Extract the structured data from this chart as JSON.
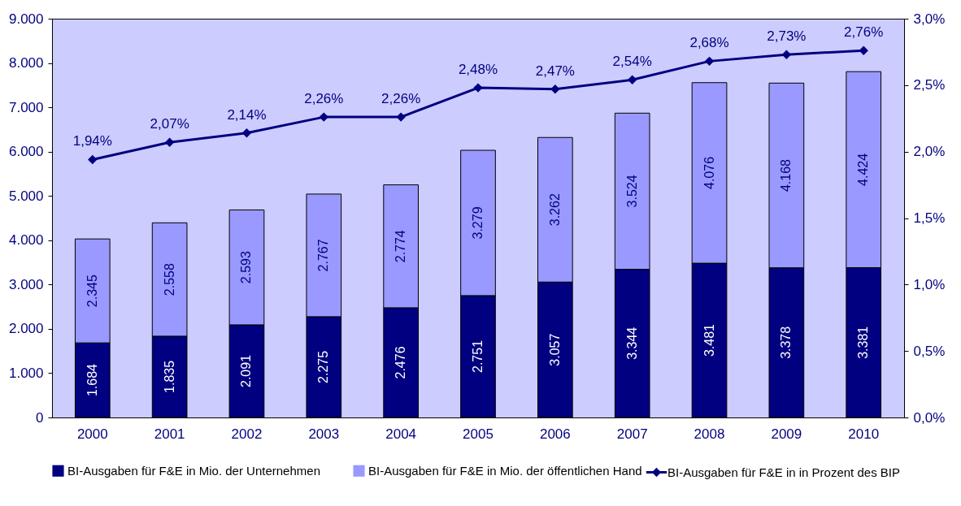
{
  "chart_data": {
    "type": "bar",
    "stacked": true,
    "categories": [
      "2000",
      "2001",
      "2002",
      "2003",
      "2004",
      "2005",
      "2006",
      "2007",
      "2008",
      "2009",
      "2010"
    ],
    "series": [
      {
        "name": "BI-Ausgaben für F&E in Mio. der Unternehmen",
        "color": "#000080",
        "values": [
          1684,
          1835,
          2091,
          2275,
          2476,
          2751,
          3057,
          3344,
          3481,
          3378,
          3381
        ],
        "value_labels": [
          "1.684",
          "1.835",
          "2.091",
          "2.275",
          "2.476",
          "2.751",
          "3.057",
          "3.344",
          "3.481",
          "3.378",
          "3.381"
        ]
      },
      {
        "name": "BI-Ausgaben für F&E in Mio. der öffentlichen Hand",
        "color": "#9999ff",
        "values": [
          2345,
          2558,
          2593,
          2767,
          2774,
          3279,
          3262,
          3524,
          4076,
          4168,
          4424
        ],
        "value_labels": [
          "2.345",
          "2.558",
          "2.593",
          "2.767",
          "2.774",
          "3.279",
          "3.262",
          "3.524",
          "4.076",
          "4.168",
          "4.424"
        ]
      },
      {
        "name": "BI-Ausgaben für F&E in in Prozent des BIP",
        "type": "line",
        "axis": "y2",
        "color": "#000080",
        "marker": "diamond",
        "values": [
          1.94,
          2.07,
          2.14,
          2.26,
          2.26,
          2.48,
          2.47,
          2.54,
          2.68,
          2.73,
          2.76
        ],
        "value_labels": [
          "1,94%",
          "2,07%",
          "2,14%",
          "2,26%",
          "2,26%",
          "2,48%",
          "2,47%",
          "2,54%",
          "2,68%",
          "2,73%",
          "2,76%"
        ]
      }
    ],
    "ylim": [
      0,
      9000
    ],
    "yticks": [
      0,
      {
        "value": 1000,
        "label": "1.000"
      },
      {
        "value": 2000,
        "label": "2.000"
      },
      {
        "value": 3000,
        "label": "3.000"
      },
      {
        "value": 4000,
        "label": "4.000"
      },
      {
        "value": 5000,
        "label": "5.000"
      },
      {
        "value": 6000,
        "label": "6.000"
      },
      {
        "value": 7000,
        "label": "7.000"
      },
      {
        "value": 8000,
        "label": "8.000"
      },
      {
        "value": 9000,
        "label": "9.000"
      }
    ],
    "y2lim": [
      0,
      3
    ],
    "y2ticks": [
      {
        "value": 0,
        "label": "0,0%"
      },
      {
        "value": 0.5,
        "label": "0,5%"
      },
      {
        "value": 1,
        "label": "1,0%"
      },
      {
        "value": 1.5,
        "label": "1,5%"
      },
      {
        "value": 2,
        "label": "2,0%"
      },
      {
        "value": 2.5,
        "label": "2,5%"
      },
      {
        "value": 3,
        "label": "3,0%"
      }
    ],
    "grid": false,
    "legend": "bottom"
  }
}
